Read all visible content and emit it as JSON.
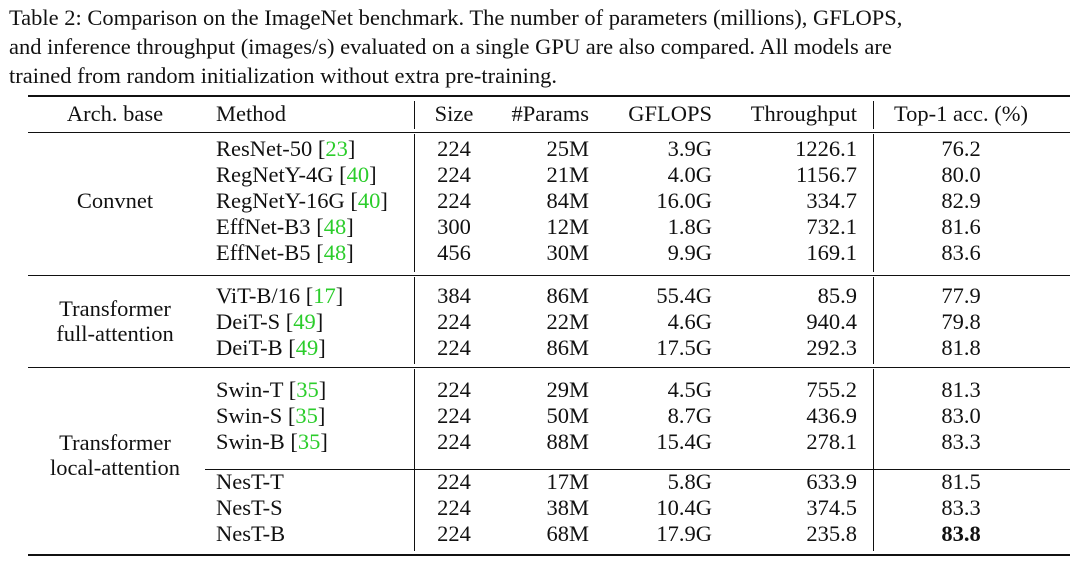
{
  "caption": "Table 2: Comparison on the ImageNet benchmark. The number of parameters (millions), GFLOPS,\nand inference throughput (images/s) evaluated on a single GPU are also compared. All models are\ntrained from random initialization without extra pre-training.",
  "headers": {
    "arch": "Arch. base",
    "method": "Method",
    "size": "Size",
    "params": "#Params",
    "gflops": "GFLOPS",
    "throughput": "Throughput",
    "top1": "Top-1 acc. (%)"
  },
  "groups": [
    {
      "name": "Convnet"
    },
    {
      "name": "Transformer\nfull-attention"
    },
    {
      "name": "Transformer\nlocal-attention"
    }
  ],
  "rows": [
    {
      "method": "ResNet-50",
      "cite": "23",
      "size": "224",
      "params": "25M",
      "gflops": "3.9G",
      "throughput": "1226.1",
      "top1": "76.2"
    },
    {
      "method": "RegNetY-4G",
      "cite": "40",
      "size": "224",
      "params": "21M",
      "gflops": "4.0G",
      "throughput": "1156.7",
      "top1": "80.0"
    },
    {
      "method": "RegNetY-16G",
      "cite": "40",
      "size": "224",
      "params": "84M",
      "gflops": "16.0G",
      "throughput": "334.7",
      "top1": "82.9"
    },
    {
      "method": "EffNet-B3",
      "cite": "48",
      "size": "300",
      "params": "12M",
      "gflops": "1.8G",
      "throughput": "732.1",
      "top1": "81.6"
    },
    {
      "method": "EffNet-B5",
      "cite": "48",
      "size": "456",
      "params": "30M",
      "gflops": "9.9G",
      "throughput": "169.1",
      "top1": "83.6"
    },
    {
      "method": "ViT-B/16",
      "cite": "17",
      "size": "384",
      "params": "86M",
      "gflops": "55.4G",
      "throughput": "85.9",
      "top1": "77.9"
    },
    {
      "method": "DeiT-S",
      "cite": "49",
      "size": "224",
      "params": "22M",
      "gflops": "4.6G",
      "throughput": "940.4",
      "top1": "79.8"
    },
    {
      "method": "DeiT-B",
      "cite": "49",
      "size": "224",
      "params": "86M",
      "gflops": "17.5G",
      "throughput": "292.3",
      "top1": "81.8"
    },
    {
      "method": "Swin-T",
      "cite": "35",
      "size": "224",
      "params": "29M",
      "gflops": "4.5G",
      "throughput": "755.2",
      "top1": "81.3"
    },
    {
      "method": "Swin-S",
      "cite": "35",
      "size": "224",
      "params": "50M",
      "gflops": "8.7G",
      "throughput": "436.9",
      "top1": "83.0"
    },
    {
      "method": "Swin-B",
      "cite": "35",
      "size": "224",
      "params": "88M",
      "gflops": "15.4G",
      "throughput": "278.1",
      "top1": "83.3"
    },
    {
      "method": "NesT-T",
      "cite": "",
      "size": "224",
      "params": "17M",
      "gflops": "5.8G",
      "throughput": "633.9",
      "top1": "81.5"
    },
    {
      "method": "NesT-S",
      "cite": "",
      "size": "224",
      "params": "38M",
      "gflops": "10.4G",
      "throughput": "374.5",
      "top1": "83.3"
    },
    {
      "method": "NesT-B",
      "cite": "",
      "size": "224",
      "params": "68M",
      "gflops": "17.9G",
      "throughput": "235.8",
      "top1": "83.8",
      "best": true
    }
  ]
}
